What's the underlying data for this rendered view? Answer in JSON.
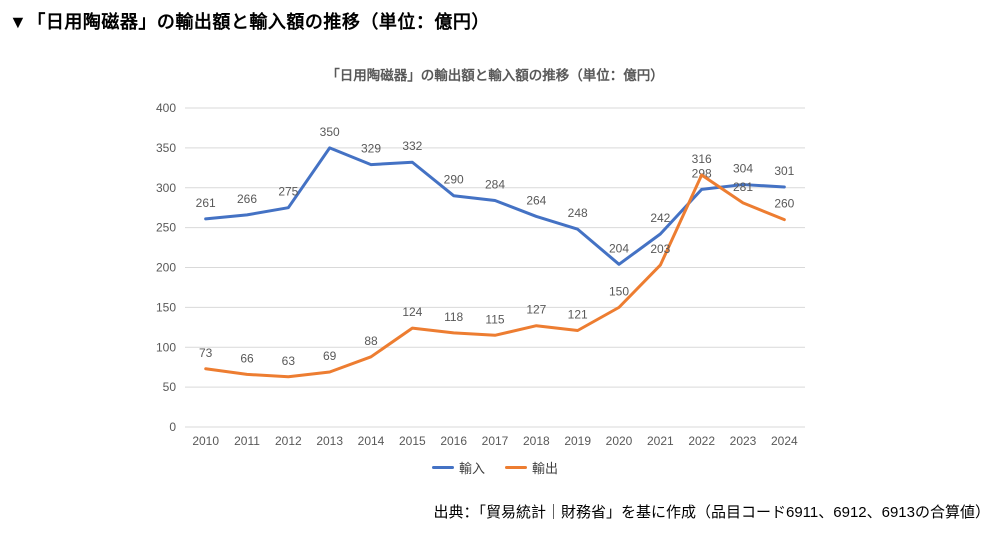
{
  "page": {
    "title": "▼「日用陶磁器」の輸出額と輸入額の推移（単位：億円）",
    "source_note": "出典：「貿易統計｜財務省」を基に作成（品目コード6911、6912、6913の合算値）"
  },
  "chart": {
    "title": "「日用陶磁器」の輸出額と輸入額の推移（単位：億円）",
    "legend": [
      {
        "label": "輸入",
        "color": "#4472C4"
      },
      {
        "label": "輸出",
        "color": "#ED7D31"
      }
    ]
  },
  "chart_data": {
    "type": "line",
    "title": "「日用陶磁器」の輸出額と輸入額の推移（単位：億円）",
    "categories": [
      "2010",
      "2011",
      "2012",
      "2013",
      "2014",
      "2015",
      "2016",
      "2017",
      "2018",
      "2019",
      "2020",
      "2021",
      "2022",
      "2023",
      "2024"
    ],
    "series": [
      {
        "name": "輸入",
        "color": "#4472C4",
        "values": [
          261,
          266,
          275,
          350,
          329,
          332,
          290,
          284,
          264,
          248,
          204,
          242,
          298,
          304,
          301
        ]
      },
      {
        "name": "輸出",
        "color": "#ED7D31",
        "values": [
          73,
          66,
          63,
          69,
          88,
          124,
          118,
          115,
          127,
          121,
          150,
          203,
          316,
          281,
          260
        ]
      }
    ],
    "xlabel": "",
    "ylabel": "",
    "ylim": [
      0,
      400
    ],
    "ytick_step": 50,
    "grid": "horizontal",
    "grid_color": "#D9D9D9",
    "axis_text_color": "#595959",
    "data_label_color": "#595959",
    "data_labels": true,
    "legend_position": "bottom"
  }
}
